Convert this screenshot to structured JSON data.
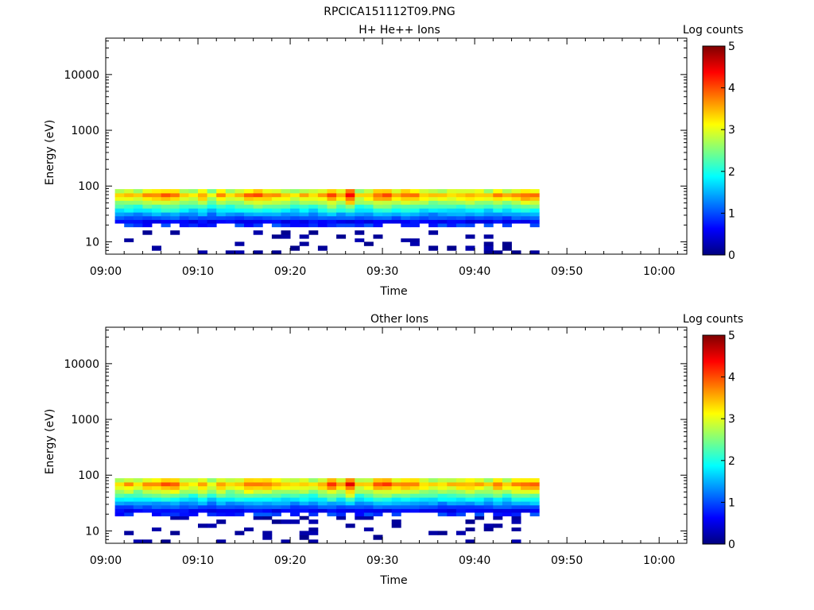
{
  "figure": {
    "title": "RPCICA151112T09.PNG"
  },
  "colormap": {
    "name": "jet",
    "stops": [
      "#00007f",
      "#0000ff",
      "#007fff",
      "#00ffff",
      "#7fff7f",
      "#ffff00",
      "#ff7f00",
      "#ff0000",
      "#7f0000"
    ]
  },
  "chart_data": [
    {
      "type": "heatmap",
      "title": "H+ He++ Ions",
      "xlabel": "Time",
      "ylabel": "Energy (eV)",
      "colorbar_label": "Log counts",
      "x_tick_labels": [
        "09:00",
        "09:10",
        "09:20",
        "09:30",
        "09:40",
        "09:50",
        "10:00"
      ],
      "x_range": [
        "09:00",
        "10:03"
      ],
      "data_x_range": [
        "09:01",
        "09:47"
      ],
      "y_tick_labels": [
        "10",
        "100",
        "1000",
        "10000"
      ],
      "y_scale": "log",
      "y_range": [
        6,
        45000
      ],
      "colorbar_tick_labels": [
        "0",
        "1",
        "2",
        "3",
        "4",
        "5"
      ],
      "colorbar_range": [
        0,
        5
      ],
      "energy_bins": [
        6,
        7,
        8.5,
        10,
        11.5,
        13.5,
        16,
        18.5,
        21.5,
        25,
        29,
        34,
        40,
        47,
        55,
        64,
        75,
        88
      ],
      "time_bins": 46,
      "z_peaks_log_counts": [
        3.4,
        3.5,
        3.3,
        3.6,
        3.7,
        3.9,
        3.8,
        3.4,
        3.3,
        3.6,
        3.0,
        3.6,
        3.2,
        3.4,
        3.8,
        3.9,
        3.7,
        3.6,
        3.4,
        3.3,
        3.5,
        3.3,
        3.6,
        4.0,
        3.6,
        4.3,
        3.3,
        3.4,
        3.9,
        3.9,
        3.6,
        3.8,
        3.7,
        3.4,
        3.3,
        3.3,
        3.4,
        3.5,
        3.6,
        3.5,
        3.3,
        3.8,
        3.4,
        3.7,
        3.9,
        3.8
      ]
    },
    {
      "type": "heatmap",
      "title": "Other Ions",
      "xlabel": "Time",
      "ylabel": "Energy (eV)",
      "colorbar_label": "Log counts",
      "x_tick_labels": [
        "09:00",
        "09:10",
        "09:20",
        "09:30",
        "09:40",
        "09:50",
        "10:00"
      ],
      "x_range": [
        "09:00",
        "10:03"
      ],
      "data_x_range": [
        "09:01",
        "09:47"
      ],
      "y_tick_labels": [
        "10",
        "100",
        "1000",
        "10000"
      ],
      "y_scale": "log",
      "y_range": [
        6,
        45000
      ],
      "colorbar_tick_labels": [
        "0",
        "1",
        "2",
        "3",
        "4",
        "5"
      ],
      "colorbar_range": [
        0,
        5
      ],
      "energy_bins": [
        6,
        7,
        8.5,
        10,
        11.5,
        13.5,
        16,
        18.5,
        21.5,
        25,
        29,
        34,
        40,
        47,
        55,
        64,
        75,
        88
      ],
      "time_bins": 46,
      "z_peaks_log_counts": [
        3.4,
        3.6,
        3.3,
        3.6,
        3.7,
        3.9,
        3.9,
        3.4,
        3.3,
        3.7,
        3.1,
        3.6,
        3.3,
        3.5,
        3.9,
        3.9,
        3.8,
        3.6,
        3.4,
        3.3,
        3.5,
        3.3,
        3.6,
        4.0,
        3.6,
        4.4,
        3.3,
        3.4,
        3.9,
        4.0,
        3.7,
        3.8,
        3.8,
        3.4,
        3.3,
        3.3,
        3.4,
        3.5,
        3.6,
        3.5,
        3.3,
        3.8,
        3.4,
        3.7,
        3.9,
        3.9
      ]
    }
  ]
}
